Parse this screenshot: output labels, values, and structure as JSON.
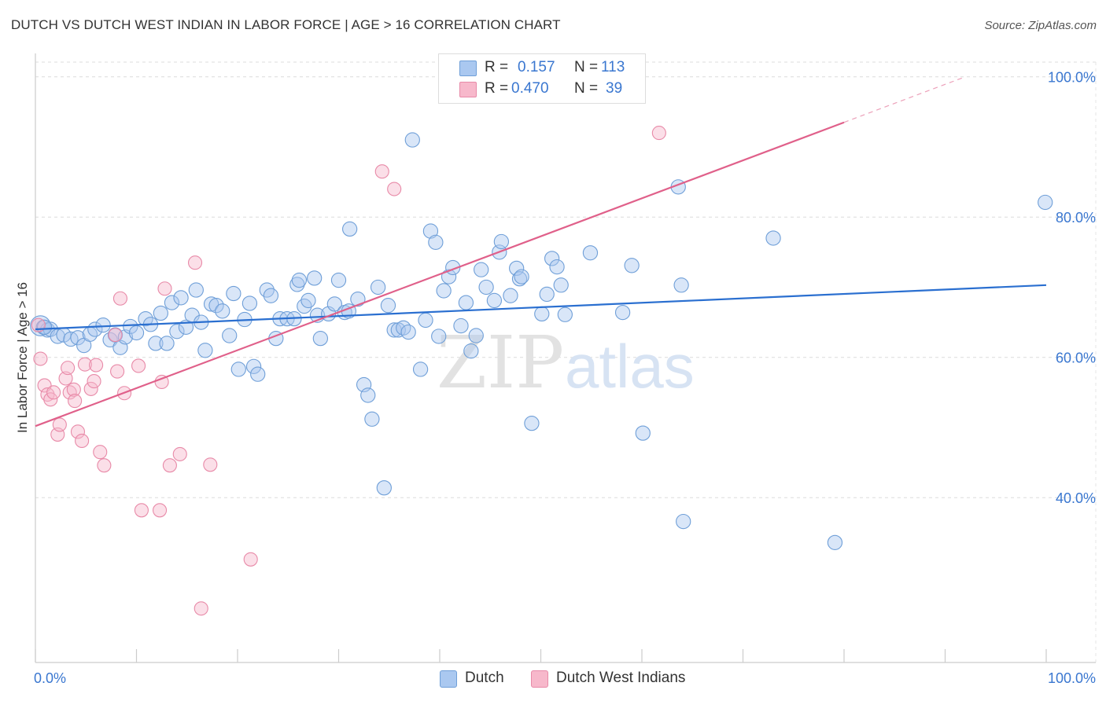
{
  "chart_data": {
    "type": "scatter",
    "title": "DUTCH VS DUTCH WEST INDIAN IN LABOR FORCE | AGE > 16 CORRELATION CHART",
    "source": "Source: ZipAtlas.com",
    "xlabel": "",
    "ylabel": "In Labor Force | Age > 16",
    "xlim": [
      0,
      100
    ],
    "ylim": [
      16.5,
      104
    ],
    "x_tick_labels": [
      "0.0%",
      "100.0%"
    ],
    "y_ticks": [
      40,
      60,
      80,
      100
    ],
    "y_tick_labels": [
      "40.0%",
      "60.0%",
      "80.0%",
      "100.0%"
    ],
    "grid": true,
    "watermark": "ZIPatlas",
    "legend": [
      {
        "r_label": "R =",
        "r_value": "0.157",
        "n_label": "N =",
        "n_value": "113"
      },
      {
        "r_label": "R =",
        "r_value": "0.470",
        "n_label": "N =",
        "n_value": "39"
      }
    ],
    "series": [
      {
        "name": "Dutch",
        "color": "#aac8f0",
        "edge": "#6f9fd8",
        "line_color": "#2a6fd0",
        "trend": {
          "x0": 0,
          "y0": 64.0,
          "x1": 100,
          "y1": 70.3
        },
        "points": [
          [
            0.5,
            64.5
          ],
          [
            0.8,
            64.3
          ],
          [
            1.2,
            63.9
          ],
          [
            1.5,
            64.0
          ],
          [
            2.2,
            63.0
          ],
          [
            2.8,
            63.2
          ],
          [
            3.5,
            62.6
          ],
          [
            4.2,
            62.8
          ],
          [
            4.8,
            61.7
          ],
          [
            5.4,
            63.3
          ],
          [
            5.9,
            64.0
          ],
          [
            6.7,
            64.6
          ],
          [
            7.4,
            62.5
          ],
          [
            7.9,
            63.2
          ],
          [
            8.4,
            61.4
          ],
          [
            8.9,
            62.9
          ],
          [
            9.4,
            64.4
          ],
          [
            10.0,
            63.5
          ],
          [
            10.9,
            65.5
          ],
          [
            11.4,
            64.7
          ],
          [
            11.9,
            62.0
          ],
          [
            12.4,
            66.3
          ],
          [
            13.0,
            62.0
          ],
          [
            13.5,
            67.8
          ],
          [
            14.0,
            63.7
          ],
          [
            14.4,
            68.5
          ],
          [
            14.9,
            64.3
          ],
          [
            15.5,
            66.0
          ],
          [
            15.9,
            69.6
          ],
          [
            16.4,
            65.0
          ],
          [
            16.8,
            61.0
          ],
          [
            17.4,
            67.6
          ],
          [
            17.9,
            67.4
          ],
          [
            18.5,
            66.6
          ],
          [
            19.2,
            63.1
          ],
          [
            19.6,
            69.1
          ],
          [
            20.1,
            58.3
          ],
          [
            20.7,
            65.4
          ],
          [
            21.2,
            67.7
          ],
          [
            21.6,
            58.7
          ],
          [
            22.0,
            57.6
          ],
          [
            22.9,
            69.6
          ],
          [
            23.3,
            68.8
          ],
          [
            23.8,
            62.7
          ],
          [
            24.2,
            65.5
          ],
          [
            24.9,
            65.5
          ],
          [
            25.6,
            65.5
          ],
          [
            25.9,
            70.4
          ],
          [
            26.1,
            71.0
          ],
          [
            26.6,
            67.3
          ],
          [
            27.0,
            68.1
          ],
          [
            27.6,
            71.3
          ],
          [
            27.9,
            66.0
          ],
          [
            28.2,
            62.7
          ],
          [
            29.0,
            66.2
          ],
          [
            29.6,
            67.6
          ],
          [
            30.0,
            71.0
          ],
          [
            30.6,
            66.4
          ],
          [
            31.0,
            66.6
          ],
          [
            31.1,
            78.3
          ],
          [
            31.9,
            68.3
          ],
          [
            32.5,
            56.1
          ],
          [
            32.9,
            54.6
          ],
          [
            33.3,
            51.2
          ],
          [
            33.9,
            70.0
          ],
          [
            34.5,
            41.4
          ],
          [
            34.9,
            67.4
          ],
          [
            35.5,
            63.9
          ],
          [
            35.9,
            63.9
          ],
          [
            36.4,
            64.2
          ],
          [
            36.9,
            63.6
          ],
          [
            37.3,
            91.0
          ],
          [
            38.1,
            58.3
          ],
          [
            38.6,
            65.3
          ],
          [
            39.1,
            78.0
          ],
          [
            39.6,
            76.4
          ],
          [
            39.9,
            63.0
          ],
          [
            40.4,
            69.5
          ],
          [
            40.9,
            71.5
          ],
          [
            41.3,
            72.8
          ],
          [
            42.1,
            64.5
          ],
          [
            42.6,
            67.8
          ],
          [
            43.1,
            60.9
          ],
          [
            43.6,
            63.1
          ],
          [
            44.1,
            72.5
          ],
          [
            44.6,
            70.0
          ],
          [
            45.4,
            68.1
          ],
          [
            45.9,
            75.0
          ],
          [
            46.1,
            76.5
          ],
          [
            47.0,
            68.8
          ],
          [
            47.6,
            72.7
          ],
          [
            47.9,
            71.2
          ],
          [
            48.1,
            71.5
          ],
          [
            49.1,
            50.6
          ],
          [
            50.1,
            66.2
          ],
          [
            50.6,
            69.0
          ],
          [
            51.1,
            74.1
          ],
          [
            51.6,
            72.9
          ],
          [
            52.0,
            70.3
          ],
          [
            52.4,
            66.1
          ],
          [
            54.9,
            74.9
          ],
          [
            58.1,
            66.4
          ],
          [
            59.0,
            73.1
          ],
          [
            60.1,
            49.2
          ],
          [
            63.6,
            84.3
          ],
          [
            63.9,
            70.3
          ],
          [
            64.1,
            36.6
          ],
          [
            73.0,
            77.0
          ],
          [
            79.1,
            33.6
          ],
          [
            99.9,
            82.1
          ],
          [
            0.9,
            64.3
          ]
        ],
        "sizes": [
          14,
          10,
          10,
          10,
          10,
          10,
          10,
          10,
          10,
          10,
          10,
          10,
          10,
          10,
          10,
          10,
          10,
          10,
          10,
          10,
          10,
          10,
          10,
          10,
          10,
          10,
          10,
          10,
          10,
          10,
          10,
          10,
          10,
          10,
          10,
          10,
          10,
          10,
          10,
          10,
          10,
          10,
          10,
          10,
          10,
          10,
          10,
          10,
          10,
          10,
          10,
          10,
          10,
          10,
          10,
          10,
          10,
          10,
          10,
          10,
          10,
          10,
          10,
          10,
          10,
          10,
          10,
          10,
          10,
          10,
          10,
          10,
          10,
          10,
          10,
          10,
          10,
          10,
          10,
          10,
          10,
          10,
          10,
          10,
          10,
          10,
          10,
          10,
          10,
          10,
          10,
          10,
          10,
          10,
          10,
          10,
          10,
          10,
          10,
          10,
          10,
          10,
          10,
          10,
          10,
          10,
          10,
          10,
          10,
          10,
          10,
          10,
          20
        ]
      },
      {
        "name": "Dutch West Indians",
        "color": "#f7b8cb",
        "edge": "#e88aa8",
        "line_color": "#e0608a",
        "trend": {
          "x0": 0,
          "y0": 50.2,
          "x1": 80,
          "y1": 93.5,
          "dash_to_x": 92,
          "dash_to_y": 100
        },
        "points": [
          [
            0.3,
            64.6
          ],
          [
            0.5,
            59.8
          ],
          [
            0.9,
            56.0
          ],
          [
            1.2,
            54.7
          ],
          [
            1.5,
            54.0
          ],
          [
            1.8,
            55.0
          ],
          [
            2.2,
            49.0
          ],
          [
            2.4,
            50.4
          ],
          [
            3.0,
            57.0
          ],
          [
            3.2,
            58.5
          ],
          [
            3.4,
            55.0
          ],
          [
            3.8,
            55.4
          ],
          [
            3.9,
            53.8
          ],
          [
            4.2,
            49.4
          ],
          [
            4.6,
            48.1
          ],
          [
            4.9,
            59.0
          ],
          [
            5.5,
            55.5
          ],
          [
            5.8,
            56.6
          ],
          [
            6.0,
            58.9
          ],
          [
            6.4,
            46.5
          ],
          [
            6.8,
            44.6
          ],
          [
            7.9,
            63.2
          ],
          [
            8.1,
            58.0
          ],
          [
            8.4,
            68.4
          ],
          [
            8.8,
            54.9
          ],
          [
            10.2,
            58.8
          ],
          [
            10.5,
            38.2
          ],
          [
            12.3,
            38.2
          ],
          [
            12.5,
            56.5
          ],
          [
            12.8,
            69.8
          ],
          [
            13.3,
            44.6
          ],
          [
            14.3,
            46.2
          ],
          [
            15.8,
            73.5
          ],
          [
            16.4,
            24.2
          ],
          [
            17.3,
            44.7
          ],
          [
            21.3,
            31.2
          ],
          [
            34.3,
            86.5
          ],
          [
            35.5,
            84.0
          ],
          [
            61.7,
            92.0
          ]
        ]
      }
    ],
    "legend_bottom": [
      "Dutch",
      "Dutch West Indians"
    ]
  }
}
